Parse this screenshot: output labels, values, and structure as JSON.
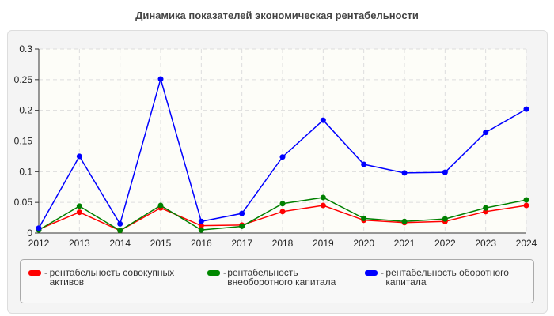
{
  "chart_data": {
    "type": "line",
    "title": "Динамика показателей экономическая рентабельности",
    "x": [
      2012,
      2013,
      2014,
      2015,
      2016,
      2017,
      2018,
      2019,
      2020,
      2021,
      2022,
      2023,
      2024
    ],
    "ylim": [
      0,
      0.3
    ],
    "yticks": [
      "0",
      "0.05",
      "0.1",
      "0.15",
      "0.2",
      "0.25",
      "0.3"
    ],
    "grid": true,
    "legend_position": "bottom",
    "series": [
      {
        "name": "рентабельность совокупных активов",
        "color": "#ff0000",
        "values": [
          0.006,
          0.034,
          0.004,
          0.041,
          0.012,
          0.013,
          0.035,
          0.045,
          0.021,
          0.017,
          0.019,
          0.035,
          0.045
        ]
      },
      {
        "name": "рентабельность внеоборотного капитала",
        "color": "#008000",
        "values": [
          0.005,
          0.044,
          0.004,
          0.045,
          0.005,
          0.011,
          0.048,
          0.058,
          0.024,
          0.019,
          0.023,
          0.041,
          0.054
        ]
      },
      {
        "name": "рентабельность оборотного капитала",
        "color": "#0000ff",
        "values": [
          0.008,
          0.125,
          0.015,
          0.251,
          0.019,
          0.032,
          0.124,
          0.184,
          0.112,
          0.098,
          0.099,
          0.164,
          0.202
        ]
      }
    ]
  }
}
